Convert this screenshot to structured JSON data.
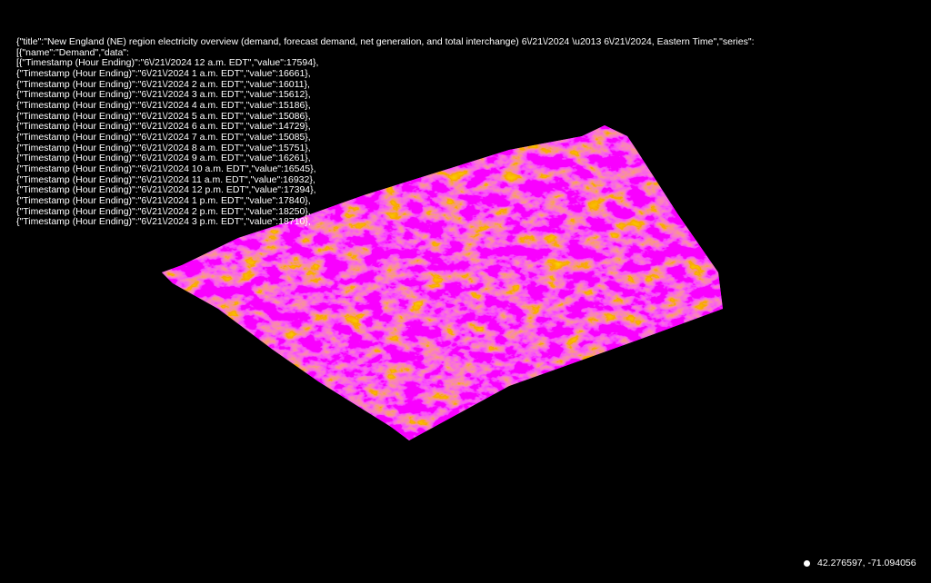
{
  "overlay": {
    "lines": [
      "{\"title\":\"New England (NE) region electricity overview (demand, forecast demand, net generation, and total interchange) 6\\/21\\/2024 \\u2013 6\\/21\\/2024, Eastern Time\",\"series\":",
      "[{\"name\":\"Demand\",\"data\":",
      "[{\"Timestamp (Hour Ending)\":\"6\\/21\\/2024 12 a.m. EDT\",\"value\":17594},",
      "{\"Timestamp (Hour Ending)\":\"6\\/21\\/2024 1 a.m. EDT\",\"value\":16661},",
      "{\"Timestamp (Hour Ending)\":\"6\\/21\\/2024 2 a.m. EDT\",\"value\":16011},",
      "{\"Timestamp (Hour Ending)\":\"6\\/21\\/2024 3 a.m. EDT\",\"value\":15612},",
      "{\"Timestamp (Hour Ending)\":\"6\\/21\\/2024 4 a.m. EDT\",\"value\":15186},",
      "{\"Timestamp (Hour Ending)\":\"6\\/21\\/2024 5 a.m. EDT\",\"value\":15086},",
      "{\"Timestamp (Hour Ending)\":\"6\\/21\\/2024 6 a.m. EDT\",\"value\":14729},",
      "{\"Timestamp (Hour Ending)\":\"6\\/21\\/2024 7 a.m. EDT\",\"value\":15085},",
      "{\"Timestamp (Hour Ending)\":\"6\\/21\\/2024 8 a.m. EDT\",\"value\":15751},",
      "{\"Timestamp (Hour Ending)\":\"6\\/21\\/2024 9 a.m. EDT\",\"value\":16261},",
      "{\"Timestamp (Hour Ending)\":\"6\\/21\\/2024 10 a.m. EDT\",\"value\":16545},",
      "{\"Timestamp (Hour Ending)\":\"6\\/21\\/2024 11 a.m. EDT\",\"value\":16932},",
      "{\"Timestamp (Hour Ending)\":\"6\\/21\\/2024 12 p.m. EDT\",\"value\":17394},",
      "{\"Timestamp (Hour Ending)\":\"6\\/21\\/2024 1 p.m. EDT\",\"value\":17840},",
      "{\"Timestamp (Hour Ending)\":\"6\\/21\\/2024 2 p.m. EDT\",\"value\":18250},",
      "{\"Timestamp (Hour Ending)\":\"6\\/21\\/2024 3 p.m. EDT\",\"value\":18710},"
    ]
  },
  "location": {
    "coordinates": "42.276597, -71.094056"
  }
}
